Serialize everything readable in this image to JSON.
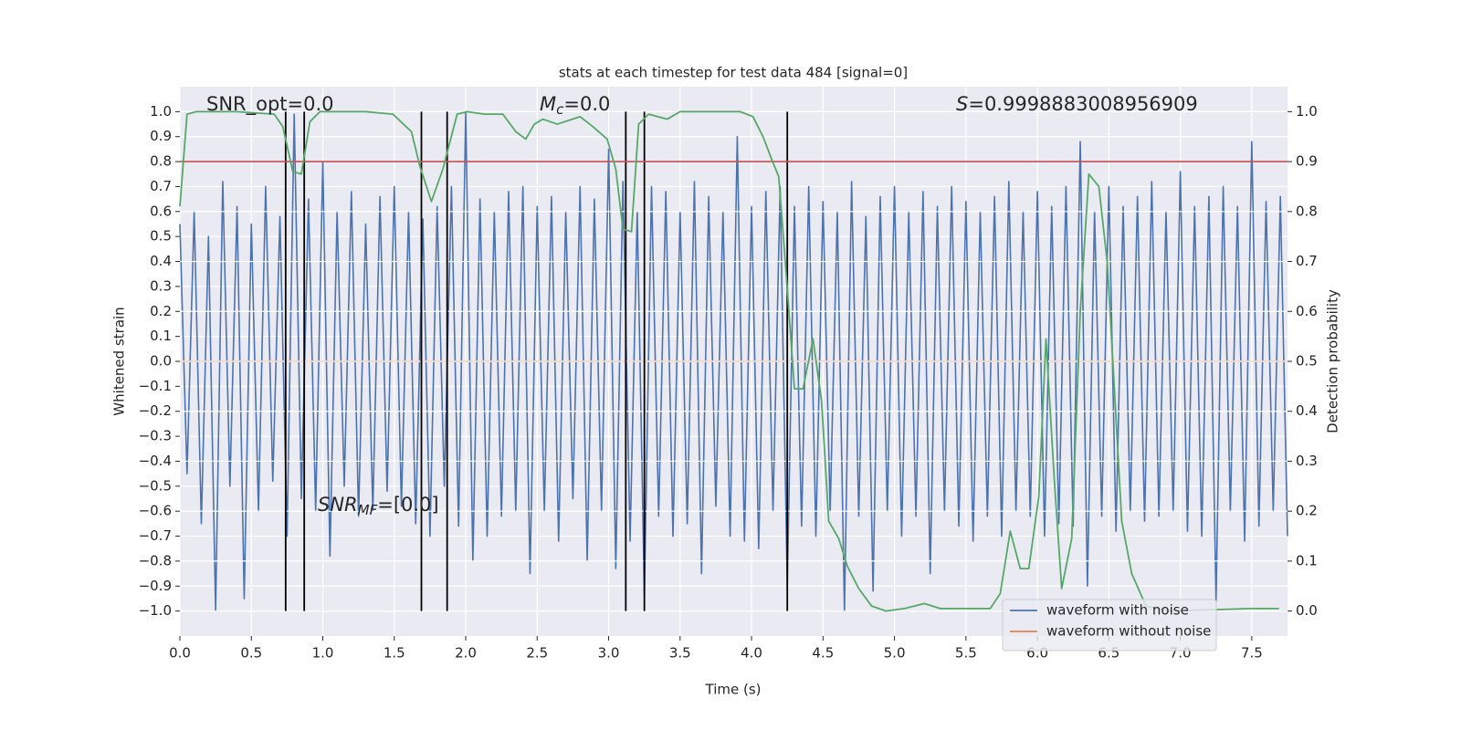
{
  "chart_data": {
    "type": "line",
    "title": "stats at each timestep for test data 484 [signal=0]",
    "x_label": "Time (s)",
    "y_label": "Whitened strain",
    "y2_label": "Detection probability",
    "xlim": [
      0,
      7.75
    ],
    "ylim": [
      -1.1,
      1.1
    ],
    "y2lim": [
      -0.05,
      1.05
    ],
    "grid": true,
    "legend": "lower right",
    "xticks": [
      {
        "value": 0,
        "label": "0.0"
      },
      0.5,
      {
        "value": 1,
        "label": "1.0"
      },
      1.5,
      {
        "value": 2,
        "label": "2.0"
      },
      2.5,
      {
        "value": 3,
        "label": "3.0"
      },
      3.5,
      {
        "value": 4,
        "label": "4.0"
      },
      4.5,
      {
        "value": 5,
        "label": "5.0"
      },
      5.5,
      {
        "value": 6,
        "label": "6.0"
      },
      6.5,
      {
        "value": 7,
        "label": "7.0"
      },
      7.5
    ],
    "yticks": [
      {
        "value": -1,
        "label": "−1.0"
      },
      {
        "value": -0.9,
        "label": "−0.9"
      },
      {
        "value": -0.8,
        "label": "−0.8"
      },
      {
        "value": -0.7,
        "label": "−0.7"
      },
      {
        "value": -0.6,
        "label": "−0.6"
      },
      {
        "value": -0.5,
        "label": "−0.5"
      },
      {
        "value": -0.4,
        "label": "−0.4"
      },
      {
        "value": -0.3,
        "label": "−0.3"
      },
      {
        "value": -0.2,
        "label": "−0.2"
      },
      {
        "value": -0.1,
        "label": "−0.1"
      },
      {
        "value": 0,
        "label": "0.0"
      },
      0.1,
      0.2,
      0.3,
      0.4,
      0.5,
      0.6,
      0.7,
      0.8,
      0.9,
      {
        "value": 1,
        "label": "1.0"
      }
    ],
    "y2ticks": [
      {
        "value": 0,
        "label": "0.0"
      },
      0.1,
      0.2,
      0.3,
      0.4,
      0.5,
      0.6,
      0.7,
      0.8,
      0.9,
      {
        "value": 1,
        "label": "1.0"
      }
    ],
    "series": [
      {
        "name": "waveform with noise",
        "color": "#4c72b0",
        "x": [
          0,
          0.05,
          0.1,
          0.15,
          0.2,
          0.25,
          0.3,
          0.35,
          0.4,
          0.45,
          0.5,
          0.55,
          0.6,
          0.65,
          0.7,
          0.75,
          0.8,
          0.85,
          0.9,
          0.95,
          1,
          1.05,
          1.1,
          1.15,
          1.2,
          1.25,
          1.3,
          1.35,
          1.4,
          1.45,
          1.5,
          1.55,
          1.6,
          1.65,
          1.7,
          1.75,
          1.8,
          1.85,
          1.9,
          1.95,
          2,
          2.05,
          2.1,
          2.15,
          2.2,
          2.25,
          2.3,
          2.35,
          2.4,
          2.45,
          2.5,
          2.55,
          2.6,
          2.65,
          2.7,
          2.75,
          2.8,
          2.85,
          2.9,
          2.95,
          3,
          3.05,
          3.1,
          3.15,
          3.2,
          3.25,
          3.3,
          3.35,
          3.4,
          3.45,
          3.5,
          3.55,
          3.6,
          3.65,
          3.7,
          3.75,
          3.8,
          3.85,
          3.9,
          3.95,
          4,
          4.05,
          4.1,
          4.15,
          4.2,
          4.25,
          4.3,
          4.35,
          4.4,
          4.45,
          4.5,
          4.55,
          4.6,
          4.65,
          4.7,
          4.75,
          4.8,
          4.85,
          4.9,
          4.95,
          5,
          5.05,
          5.1,
          5.15,
          5.2,
          5.25,
          5.3,
          5.35,
          5.4,
          5.45,
          5.5,
          5.55,
          5.6,
          5.65,
          5.7,
          5.75,
          5.8,
          5.85,
          5.9,
          5.95,
          6,
          6.05,
          6.1,
          6.15,
          6.2,
          6.25,
          6.3,
          6.35,
          6.4,
          6.45,
          6.5,
          6.55,
          6.6,
          6.65,
          6.7,
          6.75,
          6.8,
          6.85,
          6.9,
          6.95,
          7,
          7.05,
          7.1,
          7.15,
          7.2,
          7.25,
          7.3,
          7.35,
          7.4,
          7.45,
          7.5,
          7.55,
          7.6,
          7.65,
          7.7,
          7.75
        ],
        "values": [
          0.55,
          -0.45,
          0.6,
          -0.65,
          0.5,
          -1.0,
          0.72,
          -0.5,
          0.62,
          -0.95,
          0.55,
          -0.6,
          0.7,
          -0.48,
          0.58,
          -0.7,
          0.99,
          -0.55,
          0.65,
          -0.6,
          0.8,
          -0.78,
          0.6,
          -0.5,
          0.68,
          -0.62,
          0.55,
          -0.6,
          0.66,
          -0.52,
          0.7,
          -0.58,
          0.6,
          -0.65,
          0.57,
          -0.7,
          0.62,
          -0.5,
          0.7,
          -0.66,
          1.0,
          -0.8,
          0.65,
          -0.7,
          0.6,
          -0.62,
          0.68,
          -0.6,
          0.7,
          -0.85,
          0.62,
          -0.6,
          0.66,
          -0.72,
          0.6,
          -0.55,
          0.7,
          -0.8,
          0.65,
          -0.6,
          0.85,
          -0.83,
          0.72,
          -0.72,
          0.6,
          -0.94,
          0.7,
          -0.62,
          0.68,
          -0.7,
          0.6,
          -0.65,
          0.72,
          -0.85,
          0.66,
          -0.58,
          0.6,
          -0.7,
          0.9,
          -0.72,
          0.62,
          -0.75,
          0.68,
          -0.6,
          0.7,
          -0.9,
          0.62,
          -0.66,
          0.7,
          -0.7,
          0.64,
          -0.6,
          0.6,
          -1.0,
          0.72,
          -0.62,
          0.58,
          -0.92,
          0.66,
          -0.6,
          0.7,
          -0.7,
          0.6,
          -0.62,
          0.68,
          -0.85,
          0.62,
          -0.6,
          0.7,
          -0.66,
          0.64,
          -0.72,
          0.6,
          -0.62,
          0.66,
          -0.7,
          0.72,
          -0.6,
          0.6,
          -0.62,
          0.68,
          -0.7,
          0.62,
          -0.65,
          0.7,
          -0.66,
          0.88,
          -0.9,
          0.6,
          -0.62,
          0.7,
          -0.68,
          0.62,
          -0.6,
          0.66,
          -0.64,
          0.72,
          -0.62,
          0.6,
          -0.6,
          0.76,
          -0.68,
          0.62,
          -0.7,
          0.66,
          -0.96,
          0.7,
          -0.6,
          0.62,
          -0.72,
          0.88,
          -0.66,
          0.64,
          -0.6,
          0.66,
          -0.7
        ]
      },
      {
        "name": "waveform without noise",
        "color": "#dd8452",
        "x": [
          0,
          7.75
        ],
        "values": [
          0,
          0
        ]
      },
      {
        "color": "#55a868",
        "axis": "y2",
        "x": [
          0,
          0.05,
          0.115,
          0.4,
          0.66,
          0.72,
          0.79,
          0.85,
          0.91,
          0.98,
          1.3,
          1.49,
          1.62,
          1.68,
          1.76,
          1.84,
          1.94,
          2.01,
          2.13,
          2.26,
          2.35,
          2.42,
          2.48,
          2.54,
          2.64,
          2.8,
          2.89,
          2.99,
          3.05,
          3.1,
          3.16,
          3.21,
          3.28,
          3.41,
          3.5,
          3.66,
          3.92,
          4.01,
          4.08,
          4.14,
          4.19,
          4.24,
          4.3,
          4.36,
          4.43,
          4.49,
          4.54,
          4.61,
          4.67,
          4.75,
          4.84,
          4.94,
          5.07,
          5.21,
          5.32,
          5.51,
          5.67,
          5.74,
          5.81,
          5.88,
          5.94,
          6.01,
          6.06,
          6.12,
          6.17,
          6.24,
          6.3,
          6.36,
          6.43,
          6.49,
          6.59,
          6.66,
          6.76,
          6.92,
          7.5,
          7.69
        ],
        "values": [
          0.81,
          0.995,
          1.0,
          1.0,
          0.995,
          0.97,
          0.88,
          0.875,
          0.98,
          1.0,
          1.0,
          0.995,
          0.96,
          0.89,
          0.82,
          0.885,
          0.995,
          1.0,
          0.995,
          0.995,
          0.96,
          0.945,
          0.975,
          0.985,
          0.975,
          0.99,
          0.97,
          0.945,
          0.885,
          0.765,
          0.76,
          0.975,
          0.995,
          0.985,
          1.0,
          1.0,
          1.0,
          0.99,
          0.95,
          0.905,
          0.87,
          0.685,
          0.445,
          0.445,
          0.545,
          0.42,
          0.18,
          0.145,
          0.09,
          0.045,
          0.01,
          0.0,
          0.005,
          0.015,
          0.005,
          0.005,
          0.005,
          0.035,
          0.16,
          0.085,
          0.085,
          0.23,
          0.545,
          0.255,
          0.045,
          0.145,
          0.6,
          0.875,
          0.85,
          0.695,
          0.18,
          0.075,
          0.01,
          0.0,
          0.005,
          0.005
        ]
      }
    ],
    "hline": {
      "value": 0.9,
      "axis": "y2",
      "color": "#c44e52"
    },
    "vlines": {
      "x": [
        0.74,
        0.87,
        1.69,
        1.87,
        3.12,
        3.25,
        4.25
      ],
      "ymin": -1,
      "ymax": 1,
      "color": "#000000"
    },
    "annotations": [
      {
        "text": "SNR_opt=0.0"
      },
      {
        "symbol": "M",
        "subscript": "c",
        "text": "=0.0"
      },
      {
        "symbol": "S",
        "text": "=0.9998883008956909"
      },
      {
        "symbol": "SNR",
        "subscript": "MF",
        "text": "=[0.0]"
      }
    ]
  }
}
